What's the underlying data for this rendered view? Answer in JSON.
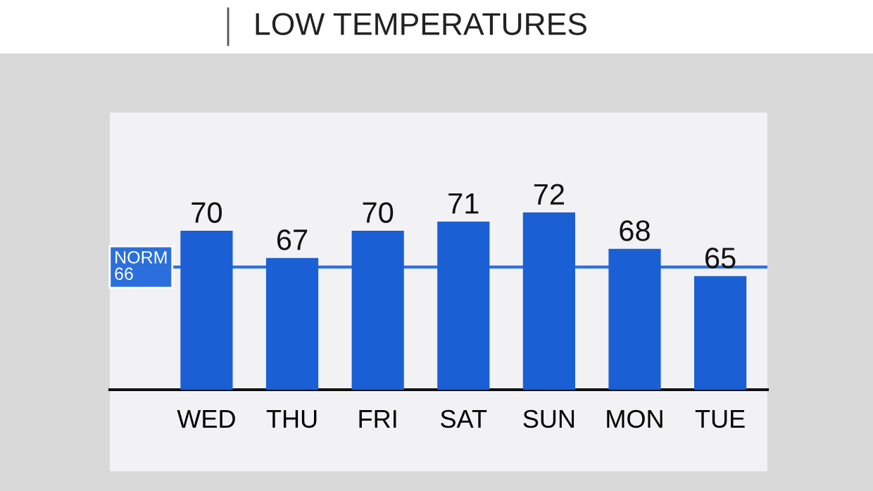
{
  "chart_data": {
    "type": "bar",
    "title": "LOW TEMPERATURES",
    "categories": [
      "WED",
      "THU",
      "FRI",
      "SAT",
      "SUN",
      "MON",
      "TUE"
    ],
    "values": [
      70,
      67,
      70,
      71,
      72,
      68,
      65
    ],
    "color": "#1a5fd4",
    "ylim": [
      52.5,
      83
    ],
    "tick_labels": "x",
    "data_labels": true,
    "ref_lines": [
      {
        "axis": "y",
        "value": 66,
        "label": "NORM\n66",
        "color": "#2b6fdc"
      }
    ],
    "grid": false,
    "legend": false
  }
}
